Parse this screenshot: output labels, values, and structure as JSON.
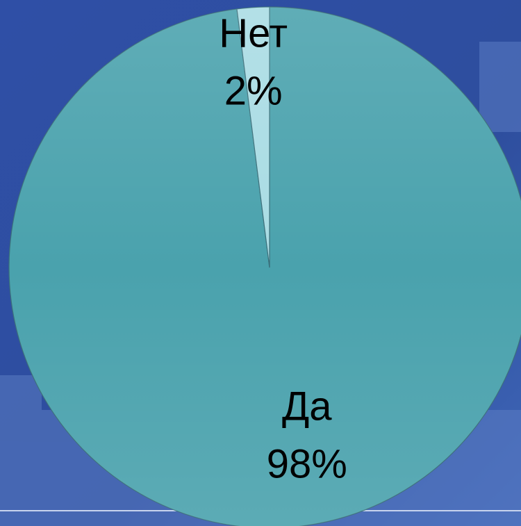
{
  "chart_data": {
    "type": "pie",
    "categories": [
      "Да",
      "Нет"
    ],
    "values": [
      98,
      2
    ],
    "value_labels": [
      "98%",
      "2%"
    ],
    "colors": [
      "#4aa2ad",
      "#a9dce4"
    ]
  }
}
